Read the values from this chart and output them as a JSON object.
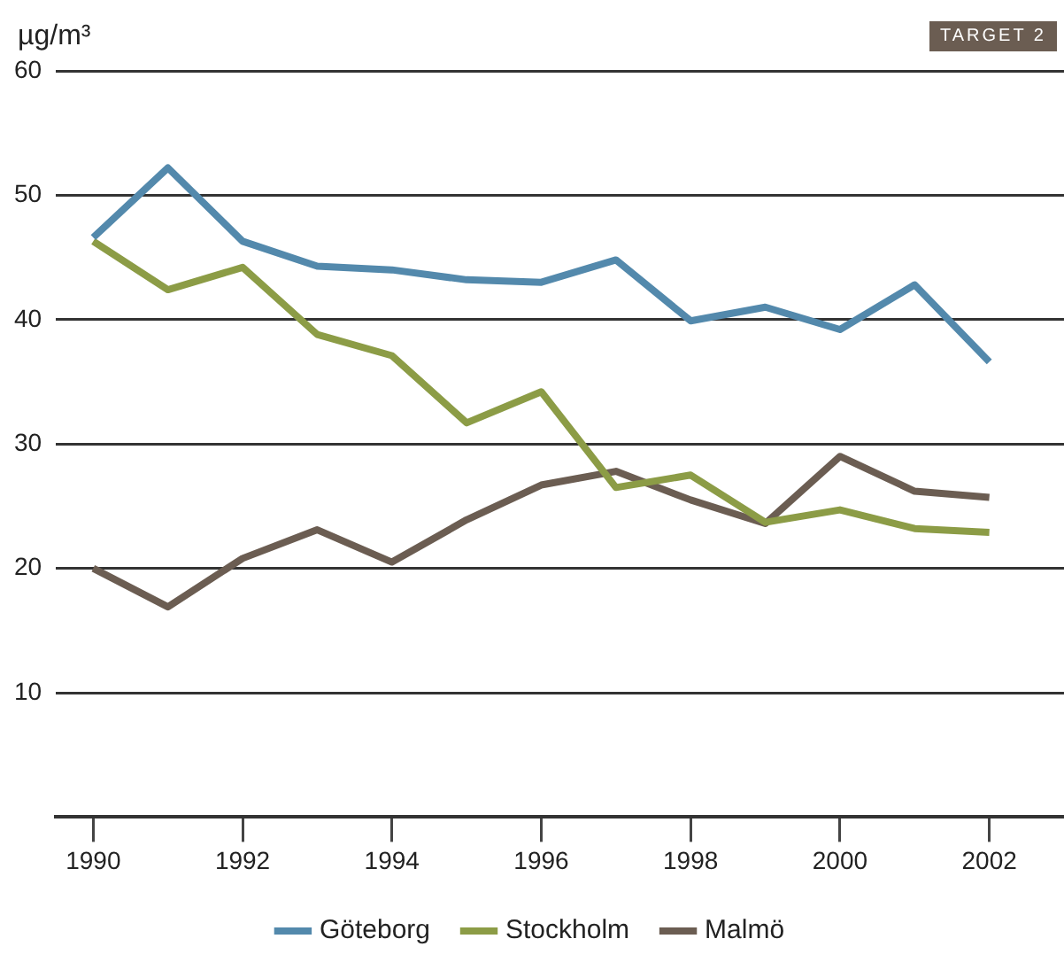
{
  "chart_data": {
    "type": "line",
    "ylabel": "µg/m³",
    "annotations": [
      "TARGET 2"
    ],
    "x": [
      1990,
      1991,
      1992,
      1993,
      1994,
      1995,
      1996,
      1997,
      1998,
      1999,
      2000,
      2001,
      2002
    ],
    "xlim": [
      1989.5,
      2003
    ],
    "xticks": [
      1990,
      1992,
      1994,
      1996,
      1998,
      2000,
      2002
    ],
    "ylim": [
      0,
      60
    ],
    "yticks": [
      10,
      20,
      30,
      40,
      50,
      60
    ],
    "grid": "y",
    "legend": "bottom",
    "marker": "none",
    "line_style": "solid",
    "series": [
      {
        "name": "Göteborg",
        "color": "#5389ac",
        "values": [
          46.6,
          52.2,
          46.3,
          44.3,
          44.0,
          43.2,
          43.0,
          44.8,
          39.9,
          41.0,
          39.2,
          42.8,
          36.6
        ]
      },
      {
        "name": "Stockholm",
        "color": "#8c9c46",
        "values": [
          46.3,
          42.4,
          44.2,
          38.8,
          37.1,
          31.7,
          34.2,
          26.5,
          27.5,
          23.7,
          24.7,
          23.2,
          22.9
        ]
      },
      {
        "name": "Malmö",
        "color": "#6b5d52",
        "values": [
          20.0,
          16.9,
          20.8,
          23.1,
          20.5,
          23.9,
          26.7,
          27.8,
          25.5,
          23.6,
          29.0,
          26.2,
          25.7
        ]
      }
    ]
  }
}
